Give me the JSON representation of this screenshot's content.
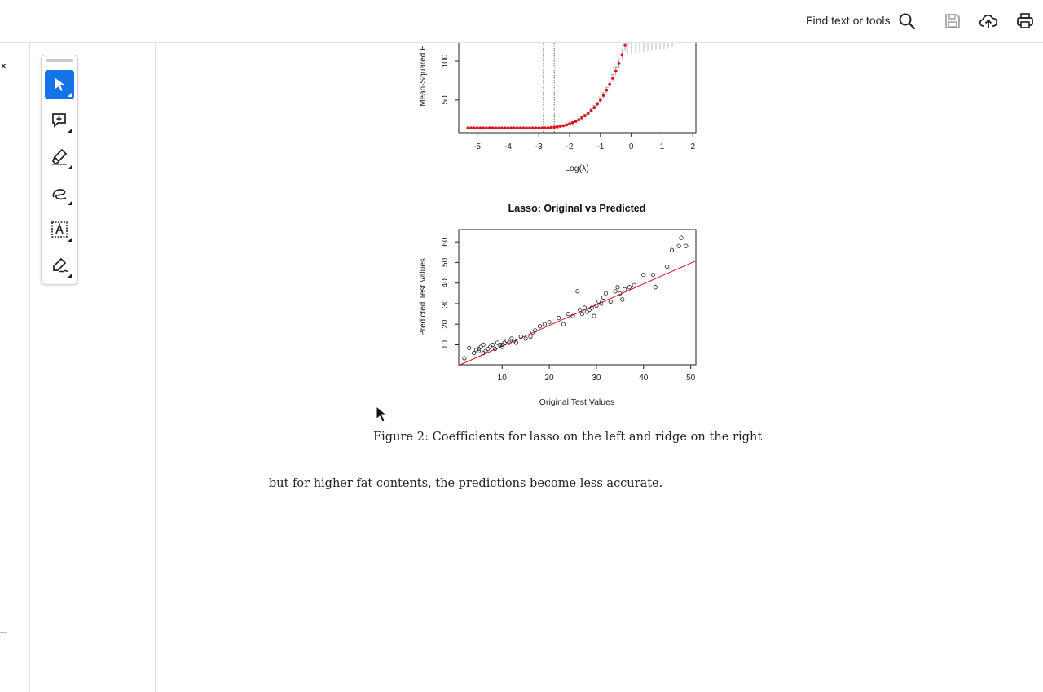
{
  "toolbar": {
    "find_label": "Find text or tools",
    "icons": [
      "search-icon",
      "save-icon",
      "upload-cloud-icon",
      "print-icon"
    ]
  },
  "left_panel": {
    "close_label": "×"
  },
  "tools": [
    {
      "name": "select-tool",
      "icon": "cursor-arrow-icon",
      "active": true
    },
    {
      "name": "add-comment-tool",
      "icon": "comment-plus-icon",
      "active": false
    },
    {
      "name": "highlight-tool",
      "icon": "highlighter-icon",
      "active": false
    },
    {
      "name": "draw-tool",
      "icon": "freehand-draw-icon",
      "active": false
    },
    {
      "name": "text-recognition-tool",
      "icon": "text-box-icon",
      "active": false
    },
    {
      "name": "sign-tool",
      "icon": "pen-sign-icon",
      "active": false
    }
  ],
  "document": {
    "caption": "Figure 2: Coefficients for lasso on the left and ridge on the right",
    "body_text": "but for higher fat contents, the predictions become less accurate."
  },
  "chart_data": [
    {
      "type": "line",
      "title": "",
      "xlabel": "Log(λ)",
      "ylabel": "Mean-Squared E",
      "x_ticks": [
        -5,
        -4,
        -3,
        -2,
        -1,
        0,
        1,
        2
      ],
      "y_ticks": [
        50,
        100
      ],
      "xlim": [
        -5.6,
        2.1
      ],
      "ylim": [
        8,
        123
      ],
      "vlines": [
        -2.85,
        -2.5
      ],
      "series": [
        {
          "name": "cv error",
          "x": [
            -5.3,
            -5.2,
            -5.1,
            -5.0,
            -4.9,
            -4.8,
            -4.7,
            -4.6,
            -4.5,
            -4.4,
            -4.3,
            -4.2,
            -4.1,
            -4.0,
            -3.9,
            -3.8,
            -3.7,
            -3.6,
            -3.5,
            -3.4,
            -3.3,
            -3.2,
            -3.1,
            -3.0,
            -2.9,
            -2.8,
            -2.7,
            -2.6,
            -2.5,
            -2.4,
            -2.3,
            -2.2,
            -2.1,
            -2.0,
            -1.9,
            -1.8,
            -1.7,
            -1.6,
            -1.5,
            -1.4,
            -1.3,
            -1.2,
            -1.1,
            -1.0,
            -0.9,
            -0.8,
            -0.7,
            -0.6,
            -0.5,
            -0.4,
            -0.3,
            -0.2,
            -0.1
          ],
          "values": [
            14,
            14,
            14,
            14,
            14,
            14,
            14,
            14,
            14,
            14,
            14,
            14,
            14,
            14,
            14,
            14,
            14,
            14,
            14,
            14,
            14,
            14,
            14,
            14,
            14,
            14,
            14.3,
            14.6,
            15,
            15.5,
            16.2,
            17,
            18,
            19.3,
            20.8,
            22.5,
            24.5,
            27,
            29.7,
            32.8,
            36.3,
            40.3,
            44.8,
            50,
            56,
            62.7,
            70,
            78,
            87,
            97,
            108,
            120,
            134
          ]
        }
      ]
    },
    {
      "type": "scatter",
      "title": "Lasso: Original vs Predicted",
      "xlabel": "Original Test Values",
      "ylabel": "Predicted Test Values",
      "x_ticks": [
        10,
        20,
        30,
        40,
        50
      ],
      "y_ticks": [
        10,
        20,
        30,
        40,
        50,
        60
      ],
      "xlim": [
        0.8,
        51.1
      ],
      "ylim": [
        0.3,
        66
      ],
      "fit_line": [
        [
          0.8,
          0
        ],
        [
          51.1,
          50.8
        ]
      ],
      "series": [
        {
          "name": "test points",
          "x": [
            2,
            3,
            4,
            4.5,
            5,
            5.5,
            5,
            6,
            6.5,
            7,
            6,
            7.5,
            8,
            8.5,
            9,
            9.5,
            10,
            10.5,
            11,
            10,
            11.5,
            12,
            12.5,
            13,
            14,
            15,
            16,
            16.5,
            17,
            18,
            19,
            20,
            22,
            23,
            24,
            25,
            26,
            26.5,
            27,
            27.5,
            28,
            28.5,
            29,
            29.5,
            30,
            30.5,
            31,
            31.5,
            32,
            33,
            34,
            34.5,
            35,
            35.5,
            36,
            37,
            38,
            40,
            42,
            42.5,
            45,
            46,
            47.5,
            48,
            49
          ],
          "values": [
            3.5,
            8.5,
            6,
            7.5,
            7,
            9,
            8,
            10,
            7,
            8,
            6,
            9,
            10,
            8,
            11,
            10,
            9,
            11,
            12,
            10,
            11,
            13,
            12,
            11,
            14,
            13,
            14,
            16,
            17,
            19,
            20,
            21,
            23,
            20,
            25,
            24,
            36,
            27,
            25,
            28,
            26,
            27,
            28,
            24,
            29,
            31,
            30,
            33,
            35,
            31,
            36,
            38,
            35,
            32,
            37,
            38,
            39,
            44,
            44,
            38,
            48,
            56,
            58,
            62,
            58
          ]
        }
      ]
    }
  ]
}
